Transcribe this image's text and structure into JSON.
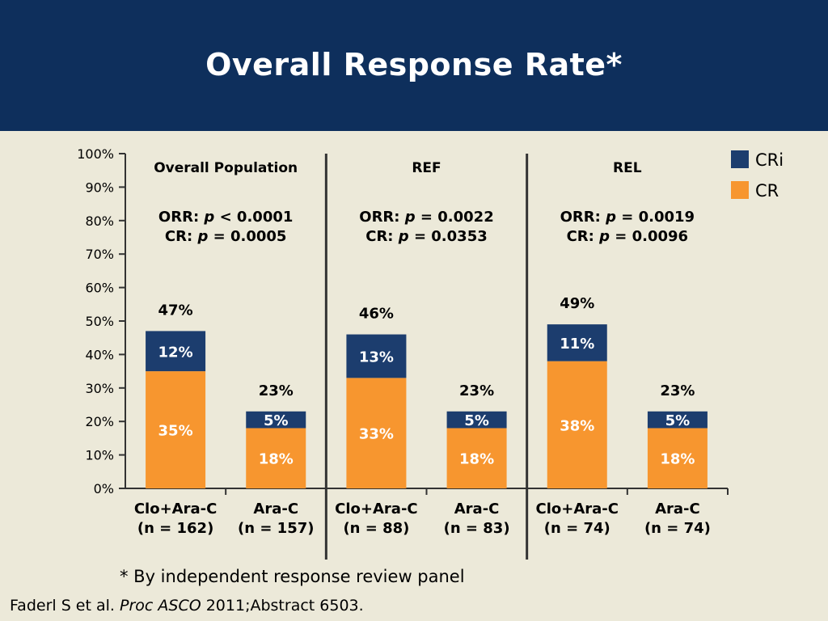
{
  "slide": {
    "title": "Overall Response Rate*",
    "footnote": "* By independent response review panel",
    "citation": {
      "authors": "Faderl S et al.",
      "journal": "Proc ASCO",
      "details": "2011;Abstract 6503."
    }
  },
  "colors": {
    "header": "#0e2f5c",
    "background": "#ece9d9",
    "cri": "#1c3d6e",
    "cr": "#f7962f"
  },
  "chart_data": {
    "type": "bar",
    "stacked": true,
    "ylim": [
      0,
      100
    ],
    "yticks": [
      "0%",
      "10%",
      "20%",
      "30%",
      "40%",
      "50%",
      "60%",
      "70%",
      "80%",
      "90%",
      "100%"
    ],
    "legend": [
      {
        "name": "CRi",
        "color": "#1c3d6e"
      },
      {
        "name": "CR",
        "color": "#f7962f"
      }
    ],
    "legend_position": "top-right",
    "panels": [
      {
        "title": "Overall Population",
        "stats": [
          {
            "prefix": "ORR: ",
            "p": "p",
            "suffix": " < 0.0001"
          },
          {
            "prefix": "CR: ",
            "p": "p",
            "suffix": " = 0.0005"
          }
        ],
        "groups": [
          {
            "name": "Clo+Ara-C",
            "n": "(n = 162)",
            "cr": 35,
            "cri": 12,
            "total": 47,
            "cr_label": "35%",
            "cri_label": "12%",
            "total_label": "47%"
          },
          {
            "name": "Ara-C",
            "n": "(n = 157)",
            "cr": 18,
            "cri": 5,
            "total": 23,
            "cr_label": "18%",
            "cri_label": "5%",
            "total_label": "23%"
          }
        ]
      },
      {
        "title": "REF",
        "stats": [
          {
            "prefix": "ORR: ",
            "p": "p",
            "suffix": " = 0.0022"
          },
          {
            "prefix": "CR: ",
            "p": "p",
            "suffix": " = 0.0353"
          }
        ],
        "groups": [
          {
            "name": "Clo+Ara-C",
            "n": "(n = 88)",
            "cr": 33,
            "cri": 13,
            "total": 46,
            "cr_label": "33%",
            "cri_label": "13%",
            "total_label": "46%"
          },
          {
            "name": "Ara-C",
            "n": "(n = 83)",
            "cr": 18,
            "cri": 5,
            "total": 23,
            "cr_label": "18%",
            "cri_label": "5%",
            "total_label": "23%"
          }
        ]
      },
      {
        "title": "REL",
        "stats": [
          {
            "prefix": "ORR: ",
            "p": "p",
            "suffix": " = 0.0019"
          },
          {
            "prefix": "CR: ",
            "p": "p",
            "suffix": " = 0.0096"
          }
        ],
        "groups": [
          {
            "name": "Clo+Ara-C",
            "n": "(n = 74)",
            "cr": 38,
            "cri": 11,
            "total": 49,
            "cr_label": "38%",
            "cri_label": "11%",
            "total_label": "49%"
          },
          {
            "name": "Ara-C",
            "n": "(n = 74)",
            "cr": 18,
            "cri": 5,
            "total": 23,
            "cr_label": "18%",
            "cri_label": "5%",
            "total_label": "23%"
          }
        ]
      }
    ]
  }
}
